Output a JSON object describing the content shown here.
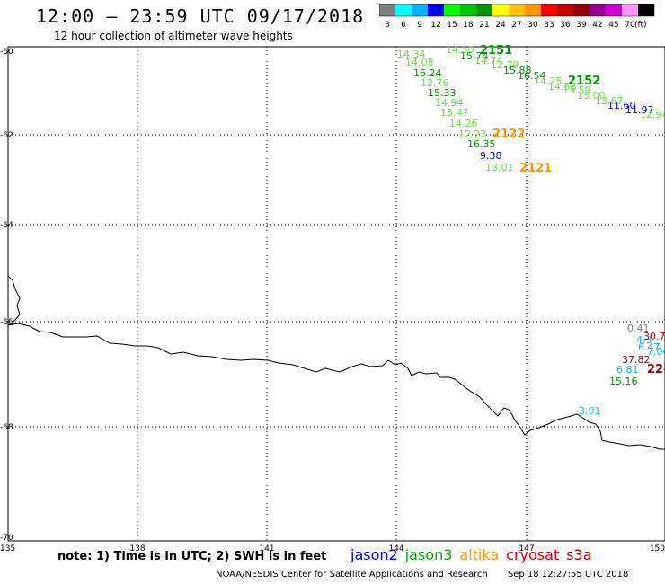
{
  "header": {
    "title": "12:00 – 23:59 UTC 09/17/2018",
    "subtitle": "12 hour collection of altimeter wave heights"
  },
  "scale": {
    "unit": "(ft)",
    "levels": [
      {
        "label": "3",
        "color": "#7f7f7f"
      },
      {
        "label": "6",
        "color": "#00ffff"
      },
      {
        "label": "9",
        "color": "#00b4ff"
      },
      {
        "label": "12",
        "color": "#0000ff"
      },
      {
        "label": "15",
        "color": "#00ff00"
      },
      {
        "label": "18",
        "color": "#00c800"
      },
      {
        "label": "21",
        "color": "#009600"
      },
      {
        "label": "24",
        "color": "#ffff00"
      },
      {
        "label": "27",
        "color": "#ffc800"
      },
      {
        "label": "30",
        "color": "#ff9600"
      },
      {
        "label": "33",
        "color": "#ff0000"
      },
      {
        "label": "36",
        "color": "#c80000"
      },
      {
        "label": "39",
        "color": "#960000"
      },
      {
        "label": "42",
        "color": "#960096"
      },
      {
        "label": "45",
        "color": "#d200d2"
      },
      {
        "label": "70",
        "color": "#ff96ff"
      },
      {
        "label": "",
        "color": "#000000"
      }
    ]
  },
  "map": {
    "lat_labels": [
      "-60",
      "-62",
      "-64",
      "-66",
      "-68",
      "-70"
    ],
    "lon_labels": [
      "135",
      "138",
      "141",
      "144",
      "147",
      "150"
    ],
    "points": [
      {
        "t": "14.34",
        "c": "#66dd44"
      },
      {
        "t": "14.50",
        "c": "#66dd44"
      },
      {
        "t": "2151",
        "c": "#009600",
        "b": true
      },
      {
        "t": "15.74",
        "c": "#009600"
      },
      {
        "t": "14.74",
        "c": "#66dd44"
      },
      {
        "t": "14.08",
        "c": "#66dd44"
      },
      {
        "t": "12.79",
        "c": "#66dd44"
      },
      {
        "t": "16.24",
        "c": "#009600"
      },
      {
        "t": "15.88",
        "c": "#009600"
      },
      {
        "t": "16.54",
        "c": "#009600"
      },
      {
        "t": "14.25",
        "c": "#66dd44"
      },
      {
        "t": "2152",
        "c": "#009600",
        "b": true
      },
      {
        "t": "12.76",
        "c": "#66dd44"
      },
      {
        "t": "14.58",
        "c": "#66dd44"
      },
      {
        "t": "13.59",
        "c": "#66dd44"
      },
      {
        "t": "15.33",
        "c": "#009600"
      },
      {
        "t": "13.00",
        "c": "#66dd44"
      },
      {
        "t": "14.94",
        "c": "#66dd44"
      },
      {
        "t": "13.67",
        "c": "#66dd44"
      },
      {
        "t": "11.60",
        "c": "#0000cc"
      },
      {
        "t": "11.97",
        "c": "#0000cc"
      },
      {
        "t": "13.47",
        "c": "#66dd44"
      },
      {
        "t": "12.94",
        "c": "#66dd44"
      },
      {
        "t": "14.26",
        "c": "#66dd44"
      },
      {
        "t": "12.23",
        "c": "#66dd44"
      },
      {
        "t": "2122",
        "c": "#ff9600",
        "b": true
      },
      {
        "t": "16.35",
        "c": "#009600"
      },
      {
        "t": "9.38",
        "c": "#0000cc"
      },
      {
        "t": "13.01",
        "c": "#66dd44"
      },
      {
        "t": "2121",
        "c": "#ff9600",
        "b": true
      },
      {
        "t": "0.41",
        "c": "#7f7f7f"
      },
      {
        "t": "30.7",
        "c": "#c80000"
      },
      {
        "t": "4.3",
        "c": "#00b4ff"
      },
      {
        "t": "6.47",
        "c": "#00b4ff"
      },
      {
        "t": "7.06",
        "c": "#00b4ff"
      },
      {
        "t": "37.82",
        "c": "#960000"
      },
      {
        "t": "22-",
        "c": "#960000",
        "b": true
      },
      {
        "t": "6.81",
        "c": "#00b4ff"
      },
      {
        "t": "15.16",
        "c": "#009600"
      },
      {
        "t": "3.91",
        "c": "#00ccee"
      }
    ]
  },
  "footer": {
    "note": "note: 1) Time is in UTC; 2) SWH is in feet",
    "satellites": [
      {
        "name": "jason2",
        "color": "#0000ff"
      },
      {
        "name": "jason3",
        "color": "#00aa00"
      },
      {
        "name": "altika",
        "color": "#ff9600"
      },
      {
        "name": "cryosat",
        "color": "#dd0000"
      },
      {
        "name": "s3a",
        "color": "#aa0000"
      }
    ],
    "credit": "NOAA/NESDIS Center for Satellite Applications and Research",
    "timestamp": "Sep 18 12:27:55 UTC 2018"
  }
}
